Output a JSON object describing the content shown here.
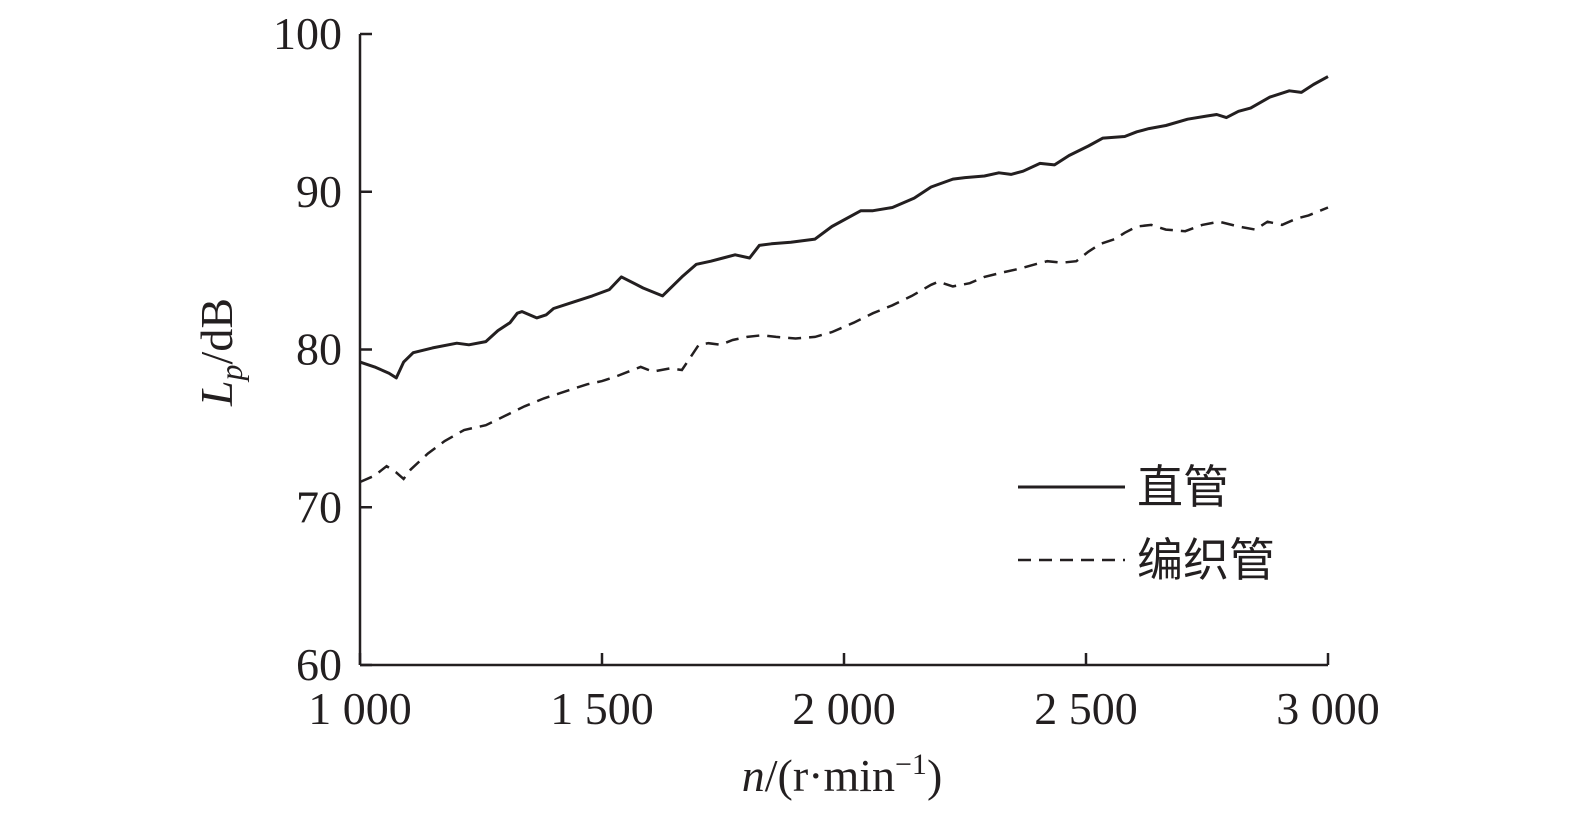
{
  "chart_data": {
    "type": "line",
    "title": "",
    "xlabel": {
      "italic": "n",
      "rest": "/(r·min",
      "sup": "−1",
      "close": ")"
    },
    "ylabel": {
      "main": "L",
      "sub": "p",
      "rest": "/dB"
    },
    "xlim": [
      1000,
      3000
    ],
    "ylim": [
      60,
      100
    ],
    "x_ticks": [
      1000,
      1500,
      2000,
      2500,
      3000
    ],
    "x_tick_labels": [
      "1 000",
      "1 500",
      "2 000",
      "2 500",
      "3 000"
    ],
    "y_ticks": [
      60,
      70,
      80,
      90,
      100
    ],
    "y_tick_labels": [
      "60",
      "70",
      "80",
      "90",
      "100"
    ],
    "grid": false,
    "legend_position": "lower-right",
    "series": [
      {
        "name": "直管",
        "style": "solid",
        "x": [
          1000,
          1030,
          1060,
          1075,
          1090,
          1110,
          1150,
          1200,
          1225,
          1260,
          1285,
          1310,
          1325,
          1335,
          1365,
          1385,
          1400,
          1440,
          1480,
          1515,
          1540,
          1585,
          1625,
          1665,
          1695,
          1725,
          1750,
          1775,
          1805,
          1825,
          1850,
          1890,
          1940,
          1975,
          2035,
          2060,
          2100,
          2145,
          2180,
          2225,
          2250,
          2290,
          2320,
          2345,
          2370,
          2405,
          2435,
          2465,
          2505,
          2535,
          2580,
          2605,
          2630,
          2665,
          2710,
          2750,
          2770,
          2790,
          2815,
          2840,
          2880,
          2920,
          2945,
          2970,
          3000
        ],
        "values": [
          79.2,
          78.9,
          78.5,
          78.2,
          79.2,
          79.8,
          80.1,
          80.4,
          80.3,
          80.5,
          81.2,
          81.7,
          82.3,
          82.4,
          82.0,
          82.2,
          82.6,
          83.0,
          83.4,
          83.8,
          84.6,
          83.9,
          83.4,
          84.6,
          85.4,
          85.6,
          85.8,
          86.0,
          85.8,
          86.6,
          86.7,
          86.8,
          87.0,
          87.8,
          88.8,
          88.8,
          89.0,
          89.6,
          90.3,
          90.8,
          90.9,
          91.0,
          91.2,
          91.1,
          91.3,
          91.8,
          91.7,
          92.3,
          92.9,
          93.4,
          93.5,
          93.8,
          94.0,
          94.2,
          94.6,
          94.8,
          94.9,
          94.7,
          95.1,
          95.3,
          96.0,
          96.4,
          96.3,
          96.8,
          97.3
        ]
      },
      {
        "name": "编织管",
        "style": "dashed",
        "x": [
          1000,
          1030,
          1055,
          1075,
          1090,
          1105,
          1140,
          1175,
          1215,
          1260,
          1300,
          1340,
          1380,
          1410,
          1440,
          1470,
          1500,
          1530,
          1555,
          1580,
          1605,
          1640,
          1665,
          1700,
          1720,
          1745,
          1770,
          1800,
          1830,
          1860,
          1900,
          1940,
          1975,
          2020,
          2060,
          2100,
          2140,
          2180,
          2195,
          2225,
          2260,
          2290,
          2330,
          2360,
          2395,
          2420,
          2450,
          2480,
          2505,
          2530,
          2560,
          2580,
          2605,
          2635,
          2665,
          2705,
          2740,
          2775,
          2815,
          2850,
          2875,
          2905,
          2935,
          2960,
          3000
        ],
        "values": [
          71.6,
          72.0,
          72.6,
          72.2,
          71.8,
          72.4,
          73.4,
          74.2,
          74.9,
          75.2,
          75.8,
          76.4,
          76.9,
          77.2,
          77.5,
          77.8,
          78.0,
          78.3,
          78.6,
          78.9,
          78.6,
          78.8,
          78.7,
          80.3,
          80.4,
          80.3,
          80.6,
          80.8,
          80.9,
          80.8,
          80.7,
          80.8,
          81.1,
          81.7,
          82.3,
          82.8,
          83.4,
          84.1,
          84.3,
          84.0,
          84.2,
          84.6,
          84.9,
          85.1,
          85.4,
          85.6,
          85.5,
          85.6,
          86.2,
          86.7,
          87.0,
          87.4,
          87.8,
          87.9,
          87.6,
          87.5,
          87.9,
          88.1,
          87.8,
          87.6,
          88.1,
          87.9,
          88.3,
          88.5,
          89.0
        ]
      }
    ]
  }
}
